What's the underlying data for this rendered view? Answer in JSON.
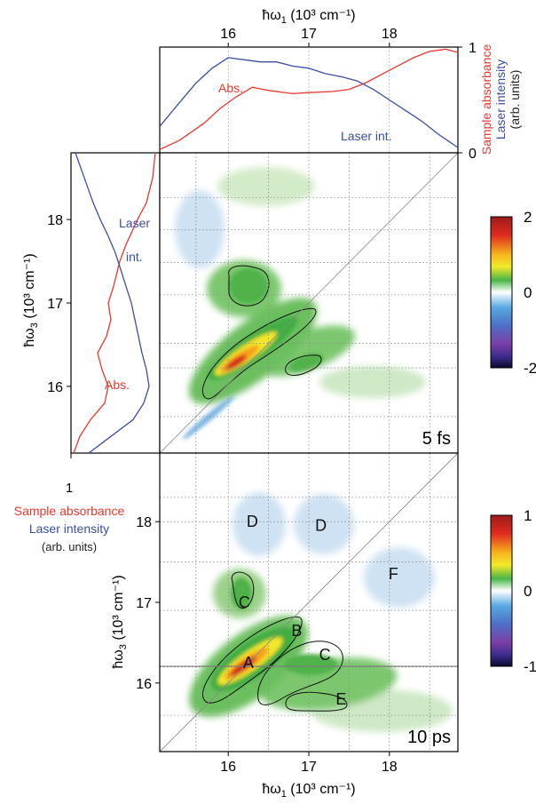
{
  "chart_data": [
    {
      "panel": "top-spectra",
      "type": "line",
      "xlabel": "ħω1 (10³ cm⁻¹)",
      "xlabel_main": "ħω",
      "xlabel_sub": "1",
      "xlabel_unit": " (10³ cm⁻¹)",
      "xlim": [
        15.15,
        18.85
      ],
      "xticks": [
        "16",
        "17",
        "18"
      ],
      "ylim": [
        0,
        1
      ],
      "yticks": [
        "0",
        "1"
      ],
      "ylabel_red": "Sample absorbance",
      "ylabel_blue": "Laser intensity",
      "ylabel_units": "(arb. units)",
      "series": [
        {
          "name": "Abs.",
          "color": "#e8382c",
          "x": [
            15.15,
            15.4,
            15.7,
            15.9,
            16.1,
            16.3,
            16.5,
            16.8,
            17.0,
            17.3,
            17.5,
            17.7,
            17.9,
            18.1,
            18.3,
            18.5,
            18.7,
            18.85
          ],
          "y": [
            0.03,
            0.12,
            0.28,
            0.42,
            0.53,
            0.62,
            0.59,
            0.56,
            0.57,
            0.58,
            0.6,
            0.66,
            0.74,
            0.82,
            0.9,
            0.96,
            0.98,
            0.95
          ]
        },
        {
          "name": "Laser int.",
          "color": "#3a4ea6",
          "x": [
            15.15,
            15.4,
            15.6,
            15.8,
            16.0,
            16.2,
            16.4,
            16.6,
            16.8,
            17.0,
            17.2,
            17.4,
            17.6,
            17.8,
            18.0,
            18.2,
            18.4,
            18.6,
            18.85
          ],
          "y": [
            0.25,
            0.48,
            0.66,
            0.8,
            0.9,
            0.88,
            0.86,
            0.86,
            0.82,
            0.8,
            0.75,
            0.72,
            0.68,
            0.6,
            0.5,
            0.4,
            0.3,
            0.18,
            0.05
          ]
        }
      ],
      "annotations": [
        "Abs.",
        "Laser int."
      ]
    },
    {
      "panel": "left-spectra",
      "type": "line",
      "orientation": "vertical",
      "ylabel": "ħω3 (10³ cm⁻¹)",
      "ylabel_main": "ħω",
      "ylabel_sub": "3",
      "ylabel_unit": " (10³ cm⁻¹)",
      "ylim": [
        15.2,
        18.8
      ],
      "yticks": [
        "16",
        "17",
        "18"
      ],
      "xticks": [
        "1"
      ],
      "series": [
        {
          "name": "Abs.",
          "color": "#e8382c",
          "w": [
            18.8,
            18.5,
            18.2,
            18.0,
            17.7,
            17.5,
            17.2,
            17.0,
            16.8,
            16.6,
            16.4,
            16.2,
            16.0,
            15.8,
            15.6,
            15.4,
            15.2
          ],
          "v": [
            0.95,
            0.92,
            0.85,
            0.75,
            0.62,
            0.55,
            0.48,
            0.42,
            0.45,
            0.4,
            0.3,
            0.35,
            0.42,
            0.38,
            0.22,
            0.1,
            0.03
          ]
        },
        {
          "name": "Laser int.",
          "color": "#3a4ea6",
          "w": [
            18.8,
            18.5,
            18.2,
            18.0,
            17.8,
            17.6,
            17.4,
            17.2,
            17.0,
            16.8,
            16.6,
            16.4,
            16.2,
            16.0,
            15.8,
            15.6,
            15.4,
            15.2
          ],
          "v": [
            0.05,
            0.15,
            0.25,
            0.33,
            0.42,
            0.5,
            0.56,
            0.62,
            0.68,
            0.72,
            0.76,
            0.8,
            0.85,
            0.88,
            0.82,
            0.7,
            0.45,
            0.2
          ]
        }
      ],
      "annotations": [
        "Laser int.",
        "Abs."
      ],
      "legend_red": "Sample absorbance",
      "legend_blue": "Laser intensity",
      "legend_units": "(arb. units)"
    },
    {
      "panel": "2D-5fs",
      "type": "heatmap",
      "label": "5 fs",
      "xlim": [
        15.15,
        18.85
      ],
      "ylim": [
        15.15,
        18.85
      ],
      "colorbar": {
        "ticks": [
          "2",
          "0",
          "-2"
        ],
        "range": [
          -2,
          2
        ]
      },
      "colors": {
        "red": "#cc1d1d",
        "yellow": "#f5e42a",
        "green": "#50b848",
        "lightgreen": "#c2e3b4",
        "blue": "#5aa0d8",
        "lightblue": "#cfe2f3"
      },
      "features": [
        {
          "kind": "diagonal-peak",
          "x": 16.3,
          "y": 16.4,
          "value": 2.0
        },
        {
          "kind": "cross-peak",
          "x": 16.25,
          "y": 17.2,
          "value": 0.8
        },
        {
          "kind": "cross-peak",
          "x": 16.9,
          "y": 16.3,
          "value": 0.6
        },
        {
          "kind": "negative",
          "x": 16.3,
          "y": 18.2,
          "value": -0.3
        }
      ]
    },
    {
      "panel": "2D-10ps",
      "type": "heatmap",
      "label": "10 ps",
      "xlabel": "ħω1 (10³ cm⁻¹)",
      "xlabel_main": "ħω",
      "xlabel_sub": "1",
      "xlabel_unit": " (10³ cm⁻¹)",
      "ylabel": "ħω3 (10³ cm⁻¹)",
      "ylabel_main": "ħω",
      "ylabel_sub": "3",
      "ylabel_unit": " (10³ cm⁻¹)",
      "xlim": [
        15.15,
        18.85
      ],
      "ylim": [
        15.15,
        18.85
      ],
      "xticks": [
        "16",
        "17",
        "18"
      ],
      "yticks": [
        "16",
        "17",
        "18"
      ],
      "colorbar": {
        "ticks": [
          "1",
          "0",
          "-1"
        ],
        "range": [
          -1,
          1
        ]
      },
      "peak_labels": [
        {
          "text": "A",
          "x": 16.25,
          "y": 16.25
        },
        {
          "text": "B",
          "x": 16.85,
          "y": 16.65
        },
        {
          "text": "C",
          "x": 16.2,
          "y": 17.0
        },
        {
          "text": "C",
          "x": 17.2,
          "y": 16.35
        },
        {
          "text": "D",
          "x": 16.3,
          "y": 18.0
        },
        {
          "text": "D",
          "x": 17.15,
          "y": 17.95
        },
        {
          "text": "E",
          "x": 17.4,
          "y": 15.8
        },
        {
          "text": "F",
          "x": 18.05,
          "y": 17.35
        }
      ]
    }
  ]
}
